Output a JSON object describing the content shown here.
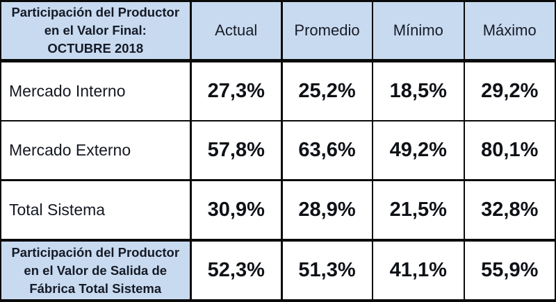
{
  "table": {
    "header": {
      "title_lines": [
        "Participación del Productor",
        "en el Valor Final:",
        "OCTUBRE 2018"
      ],
      "columns": [
        "Actual",
        "Promedio",
        "Mínimo",
        "Máximo"
      ]
    },
    "rows": [
      {
        "label": "Mercado Interno",
        "values": [
          "27,3%",
          "25,2%",
          "18,5%",
          "29,2%"
        ]
      },
      {
        "label": "Mercado Externo",
        "values": [
          "57,8%",
          "63,6%",
          "49,2%",
          "80,1%"
        ]
      },
      {
        "label": "Total Sistema",
        "values": [
          "30,9%",
          "28,9%",
          "21,5%",
          "32,8%"
        ]
      }
    ],
    "footer": {
      "label_lines": [
        "Participación del Productor",
        "en el Valor de Salida de",
        "Fábrica Total Sistema"
      ],
      "values": [
        "52,3%",
        "51,3%",
        "41,1%",
        "55,9%"
      ]
    },
    "colors": {
      "header_bg": "#c8daf0",
      "border": "#0a0a0a",
      "text": "#141821"
    }
  },
  "chart_data": {
    "type": "table",
    "title": "Participación del Productor en el Valor Final: OCTUBRE 2018",
    "columns": [
      "Actual",
      "Promedio",
      "Mínimo",
      "Máximo"
    ],
    "rows": [
      {
        "label": "Mercado Interno",
        "values": [
          27.3,
          25.2,
          18.5,
          29.2
        ]
      },
      {
        "label": "Mercado Externo",
        "values": [
          57.8,
          63.6,
          49.2,
          80.1
        ]
      },
      {
        "label": "Total Sistema",
        "values": [
          30.9,
          28.9,
          21.5,
          32.8
        ]
      },
      {
        "label": "Participación del Productor en el Valor de Salida de Fábrica Total Sistema",
        "values": [
          52.3,
          51.3,
          41.1,
          55.9
        ]
      }
    ],
    "unit": "%"
  }
}
